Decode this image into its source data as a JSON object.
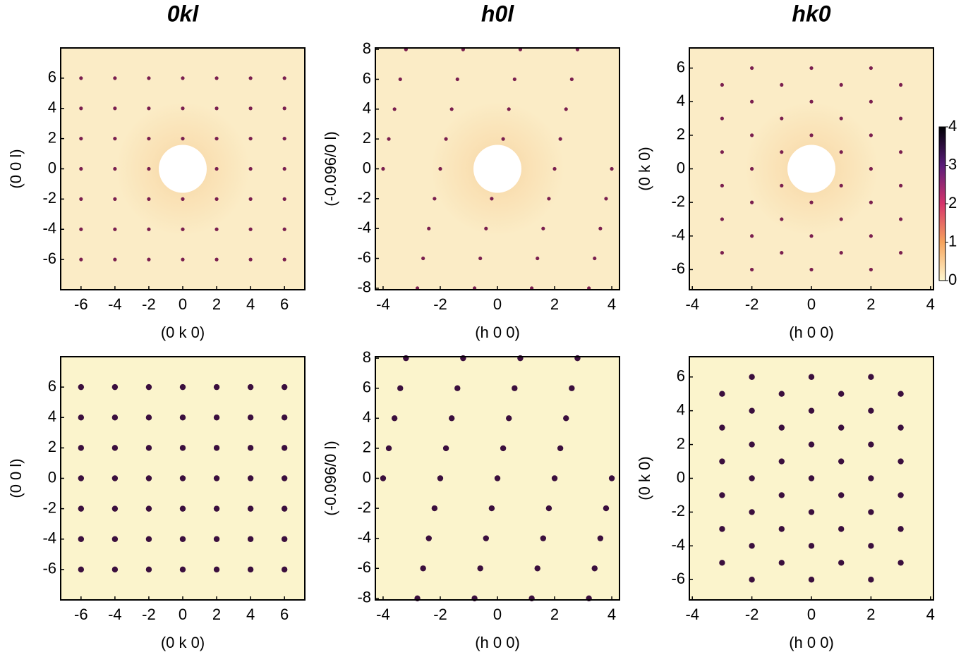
{
  "chart_data": [
    {
      "type": "scatter",
      "title": "0kl",
      "xlabel": "(0 k 0)",
      "ylabel": "(0 0 l)",
      "xlim": [
        -7.2,
        7.2
      ],
      "ylim": [
        -8,
        8
      ],
      "xticks": [
        -6,
        -4,
        -2,
        0,
        2,
        4,
        6
      ],
      "yticks": [
        -6,
        -4,
        -2,
        0,
        2,
        4,
        6
      ],
      "series": [
        {
          "color": "#7a1f4f",
          "x": [
            -6,
            -6,
            -6,
            -6,
            -6,
            -6,
            -6,
            -4,
            -4,
            -4,
            -4,
            -4,
            -4,
            -4,
            -2,
            -2,
            -2,
            -2,
            -2,
            -2,
            -2,
            0,
            0,
            0,
            0,
            0,
            0,
            2,
            2,
            2,
            2,
            2,
            2,
            2,
            4,
            4,
            4,
            4,
            4,
            4,
            4,
            6,
            6,
            6,
            6,
            6,
            6,
            6
          ],
          "values": [
            -6,
            -4,
            -2,
            0,
            2,
            4,
            6,
            -6,
            -4,
            -2,
            0,
            2,
            4,
            6,
            -6,
            -4,
            -2,
            0,
            2,
            4,
            6,
            -6,
            -4,
            -2,
            2,
            4,
            6,
            -6,
            -4,
            -2,
            0,
            2,
            4,
            6,
            -6,
            -4,
            -2,
            0,
            2,
            4,
            6,
            -6,
            -4,
            -2,
            0,
            2,
            4,
            6
          ]
        }
      ]
    },
    {
      "type": "scatter",
      "title": "h0l",
      "xlabel": "(h 0 0)",
      "ylabel": "(-0.096/0 l)",
      "xlim": [
        -4.27,
        4.27
      ],
      "ylim": [
        -8.1,
        8.1
      ],
      "xticks": [
        -4,
        -2,
        0,
        2,
        4
      ],
      "yticks": [
        -8,
        -6,
        -4,
        -2,
        0,
        2,
        4,
        6,
        8
      ],
      "series": [
        {
          "color": "#7a1f4f",
          "x": [
            -2.8,
            -0.8,
            1.2,
            3.2,
            -2.6,
            -0.6,
            1.4,
            3.4,
            -2.4,
            -0.4,
            1.6,
            3.6,
            -2.2,
            -0.2,
            1.8,
            3.8,
            -4,
            -2,
            2,
            4,
            -3.8,
            -1.8,
            0.2,
            2.2,
            -3.6,
            -1.6,
            0.4,
            2.4,
            -3.4,
            -1.4,
            0.6,
            2.6,
            -3.2,
            -1.2,
            0.8,
            2.8
          ],
          "values": [
            -8,
            -8,
            -8,
            -8,
            -6,
            -6,
            -6,
            -6,
            -4,
            -4,
            -4,
            -4,
            -2,
            -2,
            -2,
            -2,
            0,
            0,
            0,
            0,
            2,
            2,
            2,
            2,
            4,
            4,
            4,
            4,
            6,
            6,
            6,
            6,
            8,
            8,
            8,
            8
          ]
        }
      ]
    },
    {
      "type": "scatter",
      "title": "hk0",
      "xlabel": "(h 0 0)",
      "ylabel": "(0 k 0)",
      "xlim": [
        -4.1,
        4.1
      ],
      "ylim": [
        -7.2,
        7.2
      ],
      "xticks": [
        -4,
        -2,
        0,
        2,
        4
      ],
      "yticks": [
        -6,
        -4,
        -2,
        0,
        2,
        4,
        6
      ],
      "series": [
        {
          "color": "#7a1f4f",
          "x": [
            -3,
            -3,
            -3,
            -3,
            -3,
            -3,
            -2,
            -2,
            -2,
            -2,
            -2,
            -2,
            -2,
            -1,
            -1,
            -1,
            -1,
            -1,
            -1,
            0,
            0,
            0,
            0,
            0,
            0,
            1,
            1,
            1,
            1,
            1,
            1,
            2,
            2,
            2,
            2,
            2,
            2,
            2,
            3,
            3,
            3,
            3,
            3,
            3
          ],
          "values": [
            -5,
            -3,
            -1,
            1,
            3,
            5,
            -6,
            -4,
            -2,
            0,
            2,
            4,
            6,
            -5,
            -3,
            -1,
            1,
            3,
            5,
            -6,
            -4,
            -2,
            2,
            4,
            6,
            -5,
            -3,
            -1,
            1,
            3,
            5,
            -6,
            -4,
            -2,
            0,
            2,
            4,
            6,
            -5,
            -3,
            -1,
            1,
            3,
            5
          ]
        }
      ]
    },
    {
      "type": "scatter",
      "xlabel": "(0 k 0)",
      "ylabel": "(0 0 l)",
      "xlim": [
        -7.2,
        7.2
      ],
      "ylim": [
        -8,
        8
      ],
      "xticks": [
        -6,
        -4,
        -2,
        0,
        2,
        4,
        6
      ],
      "yticks": [
        -6,
        -4,
        -2,
        0,
        2,
        4,
        6
      ],
      "series": [
        {
          "color": "#3b0f3e",
          "x": [
            -6,
            -6,
            -6,
            -6,
            -6,
            -6,
            -6,
            -4,
            -4,
            -4,
            -4,
            -4,
            -4,
            -4,
            -2,
            -2,
            -2,
            -2,
            -2,
            -2,
            -2,
            0,
            0,
            0,
            0,
            0,
            0,
            0,
            2,
            2,
            2,
            2,
            2,
            2,
            2,
            4,
            4,
            4,
            4,
            4,
            4,
            4,
            6,
            6,
            6,
            6,
            6,
            6,
            6
          ],
          "values": [
            -6,
            -4,
            -2,
            0,
            2,
            4,
            6,
            -6,
            -4,
            -2,
            0,
            2,
            4,
            6,
            -6,
            -4,
            -2,
            0,
            2,
            4,
            6,
            -6,
            -4,
            -2,
            0,
            2,
            4,
            6,
            -6,
            -4,
            -2,
            0,
            2,
            4,
            6,
            -6,
            -4,
            -2,
            0,
            2,
            4,
            6,
            -6,
            -4,
            -2,
            0,
            2,
            4,
            6
          ]
        }
      ]
    },
    {
      "type": "scatter",
      "xlabel": "(h 0 0)",
      "ylabel": "(-0.096/0 l)",
      "xlim": [
        -4.27,
        4.27
      ],
      "ylim": [
        -8.1,
        8.1
      ],
      "xticks": [
        -4,
        -2,
        0,
        2,
        4
      ],
      "yticks": [
        -8,
        -6,
        -4,
        -2,
        0,
        2,
        4,
        6,
        8
      ],
      "series": [
        {
          "color": "#3b0f3e",
          "x": [
            -2.8,
            -0.8,
            1.2,
            3.2,
            -2.6,
            -0.6,
            1.4,
            3.4,
            -2.4,
            -0.4,
            1.6,
            3.6,
            -2.2,
            -0.2,
            1.8,
            3.8,
            -4,
            -2,
            0,
            2,
            4,
            -3.8,
            -1.8,
            0.2,
            2.2,
            -3.6,
            -1.6,
            0.4,
            2.4,
            -3.4,
            -1.4,
            0.6,
            2.6,
            -3.2,
            -1.2,
            0.8,
            2.8
          ],
          "values": [
            -8,
            -8,
            -8,
            -8,
            -6,
            -6,
            -6,
            -6,
            -4,
            -4,
            -4,
            -4,
            -2,
            -2,
            -2,
            -2,
            0,
            0,
            0,
            0,
            0,
            2,
            2,
            2,
            2,
            4,
            4,
            4,
            4,
            6,
            6,
            6,
            6,
            8,
            8,
            8,
            8
          ]
        }
      ]
    },
    {
      "type": "scatter",
      "xlabel": "(h 0 0)",
      "ylabel": "(0 k 0)",
      "xlim": [
        -4.1,
        4.1
      ],
      "ylim": [
        -7.2,
        7.2
      ],
      "xticks": [
        -4,
        -2,
        0,
        2,
        4
      ],
      "yticks": [
        -6,
        -4,
        -2,
        0,
        2,
        4,
        6
      ],
      "series": [
        {
          "color": "#3b0f3e",
          "x": [
            -3,
            -3,
            -3,
            -3,
            -3,
            -3,
            -2,
            -2,
            -2,
            -2,
            -2,
            -2,
            -2,
            -1,
            -1,
            -1,
            -1,
            -1,
            -1,
            0,
            0,
            0,
            0,
            0,
            0,
            0,
            1,
            1,
            1,
            1,
            1,
            1,
            2,
            2,
            2,
            2,
            2,
            2,
            2,
            3,
            3,
            3,
            3,
            3,
            3
          ],
          "values": [
            -5,
            -3,
            -1,
            1,
            3,
            5,
            -6,
            -4,
            -2,
            0,
            2,
            4,
            6,
            -5,
            -3,
            -1,
            1,
            3,
            5,
            -6,
            -4,
            -2,
            0,
            2,
            4,
            6,
            -5,
            -3,
            -1,
            1,
            3,
            5,
            -6,
            -4,
            -2,
            0,
            2,
            4,
            6,
            -5,
            -3,
            -1,
            1,
            3,
            5
          ]
        }
      ]
    }
  ],
  "colorbar": {
    "lim": [
      0,
      4
    ],
    "ticks": [
      0,
      1,
      2,
      3,
      4
    ]
  }
}
